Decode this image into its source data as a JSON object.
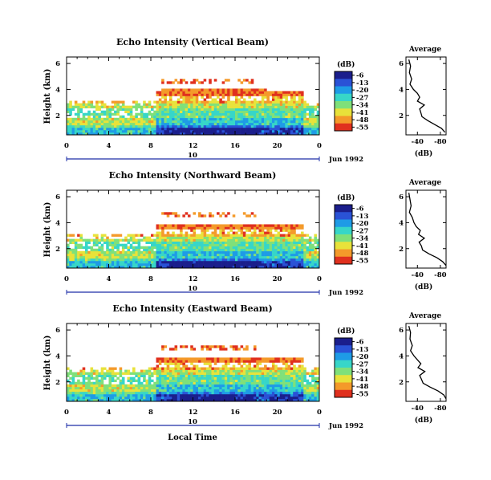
{
  "chart_data": [
    {
      "type": "heatmap",
      "title": "Echo Intensity (Vertical Beam)",
      "ylabel": "Height (km)",
      "xticks": [
        "0",
        "4",
        "8",
        "12",
        "16",
        "20",
        "0"
      ],
      "yticks": [
        "2",
        "4",
        "6"
      ],
      "xlim": [
        0,
        24
      ],
      "ylim": [
        0.5,
        6.5
      ],
      "date_label": "Jun 1992",
      "day_label": "10",
      "colorbar": {
        "unit": "(dB)",
        "ticks": [
          "-6",
          "-13",
          "-20",
          "-27",
          "-34",
          "-41",
          "-48",
          "-55"
        ]
      },
      "average_profile": {
        "title": "Average",
        "xlabel": "(dB)",
        "xticks": [
          "-40",
          "-80"
        ],
        "yticks": [
          "2",
          "4",
          "6"
        ],
        "height_km": [
          6.3,
          5.8,
          5.3,
          4.8,
          4.4,
          4.0,
          3.7,
          3.4,
          3.1,
          2.8,
          2.5,
          2.2,
          1.9,
          1.6,
          1.3,
          1.0,
          0.7
        ],
        "db": [
          -25,
          -28,
          -26,
          -30,
          -27,
          -33,
          -40,
          -44,
          -40,
          -52,
          -44,
          -46,
          -48,
          -58,
          -70,
          -82,
          -88
        ]
      }
    },
    {
      "type": "heatmap",
      "title": "Echo Intensity (Northward Beam)",
      "ylabel": "Height (km)",
      "xticks": [
        "0",
        "4",
        "8",
        "12",
        "16",
        "20",
        "0"
      ],
      "yticks": [
        "2",
        "4",
        "6"
      ],
      "xlim": [
        0,
        24
      ],
      "ylim": [
        0.5,
        6.5
      ],
      "date_label": "Jun 1992",
      "day_label": "10",
      "colorbar": {
        "unit": "(dB)",
        "ticks": [
          "-6",
          "-13",
          "-20",
          "-27",
          "-34",
          "-41",
          "-48",
          "-55"
        ]
      },
      "average_profile": {
        "title": "Average",
        "xlabel": "(dB)",
        "xticks": [
          "-40",
          "-80"
        ],
        "yticks": [
          "2",
          "4",
          "6"
        ],
        "height_km": [
          6.3,
          5.8,
          5.3,
          4.8,
          4.4,
          4.0,
          3.7,
          3.4,
          3.1,
          2.8,
          2.5,
          2.2,
          1.9,
          1.6,
          1.3,
          1.0,
          0.7
        ],
        "db": [
          -25,
          -27,
          -29,
          -26,
          -31,
          -34,
          -38,
          -45,
          -42,
          -52,
          -43,
          -47,
          -49,
          -60,
          -74,
          -84,
          -90
        ]
      }
    },
    {
      "type": "heatmap",
      "title": "Echo Intensity (Eastward Beam)",
      "ylabel": "Height (km)",
      "xticks": [
        "0",
        "4",
        "8",
        "12",
        "16",
        "20",
        "0"
      ],
      "yticks": [
        "2",
        "4",
        "6"
      ],
      "xlim": [
        0,
        24
      ],
      "ylim": [
        0.5,
        6.5
      ],
      "date_label": "Jun 1992",
      "day_label": "10",
      "colorbar": {
        "unit": "(dB)",
        "ticks": [
          "-6",
          "-13",
          "-20",
          "-27",
          "-34",
          "-41",
          "-48",
          "-55"
        ]
      },
      "average_profile": {
        "title": "Average",
        "xlabel": "(dB)",
        "xticks": [
          "-40",
          "-80"
        ],
        "yticks": [
          "2",
          "4",
          "6"
        ],
        "height_km": [
          6.3,
          5.8,
          5.3,
          4.8,
          4.4,
          4.0,
          3.7,
          3.4,
          3.1,
          2.8,
          2.5,
          2.2,
          1.9,
          1.6,
          1.3,
          1.0,
          0.7
        ],
        "db": [
          -25,
          -28,
          -27,
          -31,
          -28,
          -34,
          -40,
          -46,
          -41,
          -53,
          -44,
          -47,
          -50,
          -62,
          -76,
          -86,
          -90
        ]
      }
    }
  ],
  "xlabel": "Local Time",
  "colors": {
    "colormap": [
      "#1b1e8c",
      "#2a52d6",
      "#1e9be6",
      "#37d6c8",
      "#7fe07a",
      "#e8e23a",
      "#f49a2a",
      "#e0301e"
    ],
    "axis": "#000000",
    "date_bar": "#1e2fa8"
  }
}
